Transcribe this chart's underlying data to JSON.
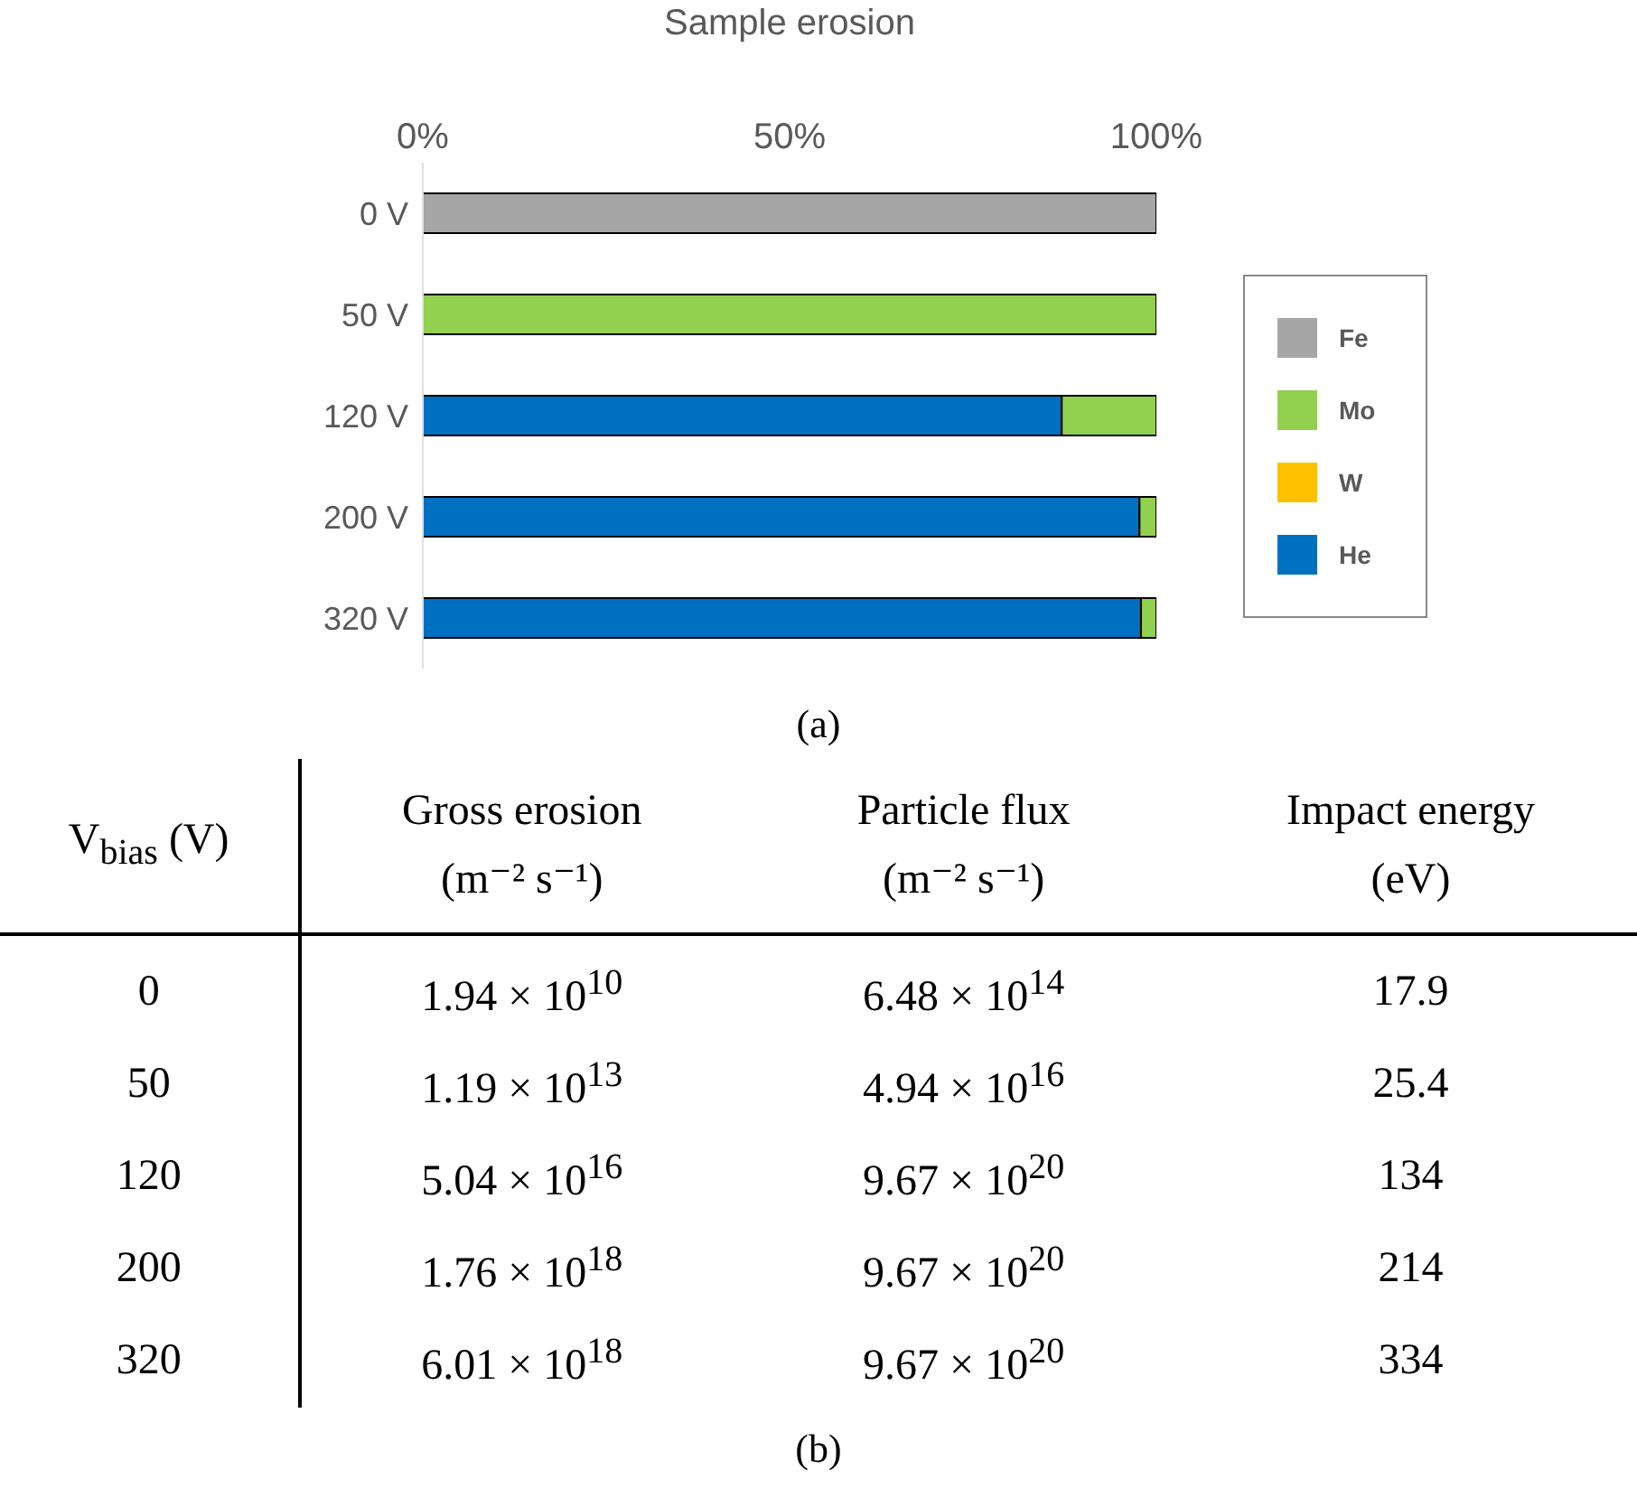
{
  "chart_data": [
    {
      "type": "bar",
      "orientation": "horizontal",
      "stacked": true,
      "xlabel": "Sample erosion",
      "categories": [
        "0 V",
        "50 V",
        "120 V",
        "200 V",
        "320 V"
      ],
      "series": [
        {
          "name": "He",
          "color": "#0070c0",
          "values": [
            0,
            0,
            87.1,
            97.7,
            97.9
          ]
        },
        {
          "name": "W",
          "color": "#ffc000",
          "values": [
            0,
            0,
            0,
            0,
            0
          ]
        },
        {
          "name": "Mo",
          "color": "#92d050",
          "values": [
            0,
            100,
            12.9,
            2.3,
            2.1
          ]
        },
        {
          "name": "Fe",
          "color": "#a6a6a6",
          "values": [
            100,
            0,
            0,
            0,
            0
          ]
        }
      ],
      "xlim": [
        0,
        100
      ],
      "xticks": [
        {
          "value": 0,
          "label": "0%"
        },
        {
          "value": 50,
          "label": "50%"
        },
        {
          "value": 100,
          "label": "100%"
        }
      ],
      "legend": "right",
      "annotations": [
        "(a)"
      ]
    },
    {
      "type": "other",
      "categories": [
        "V$_{bias}$ (V)",
        "Gross erosion\n(m⁻² s⁻¹)",
        "Particle flux\n(m⁻² s⁻¹)",
        "Impact energy\n(eV)"
      ],
      "cell_labels": [
        [
          "0",
          "1.94 × 10$^{10}$",
          "6.48 × 10$^{14}$",
          "17.9"
        ],
        [
          "50",
          "1.19 × 10$^{13}$",
          "4.94 × 10$^{16}$",
          "25.4"
        ],
        [
          "120",
          "5.04 × 10$^{16}$",
          "9.67 × 10$^{20}$",
          "134"
        ],
        [
          "200",
          "1.76 × 10$^{18}$",
          "9.67 × 10$^{20}$",
          "214"
        ],
        [
          "320",
          "6.01 × 10$^{18}$",
          "9.67 × 10$^{20}$",
          "334"
        ]
      ],
      "annotations": [
        "(b)"
      ]
    }
  ]
}
